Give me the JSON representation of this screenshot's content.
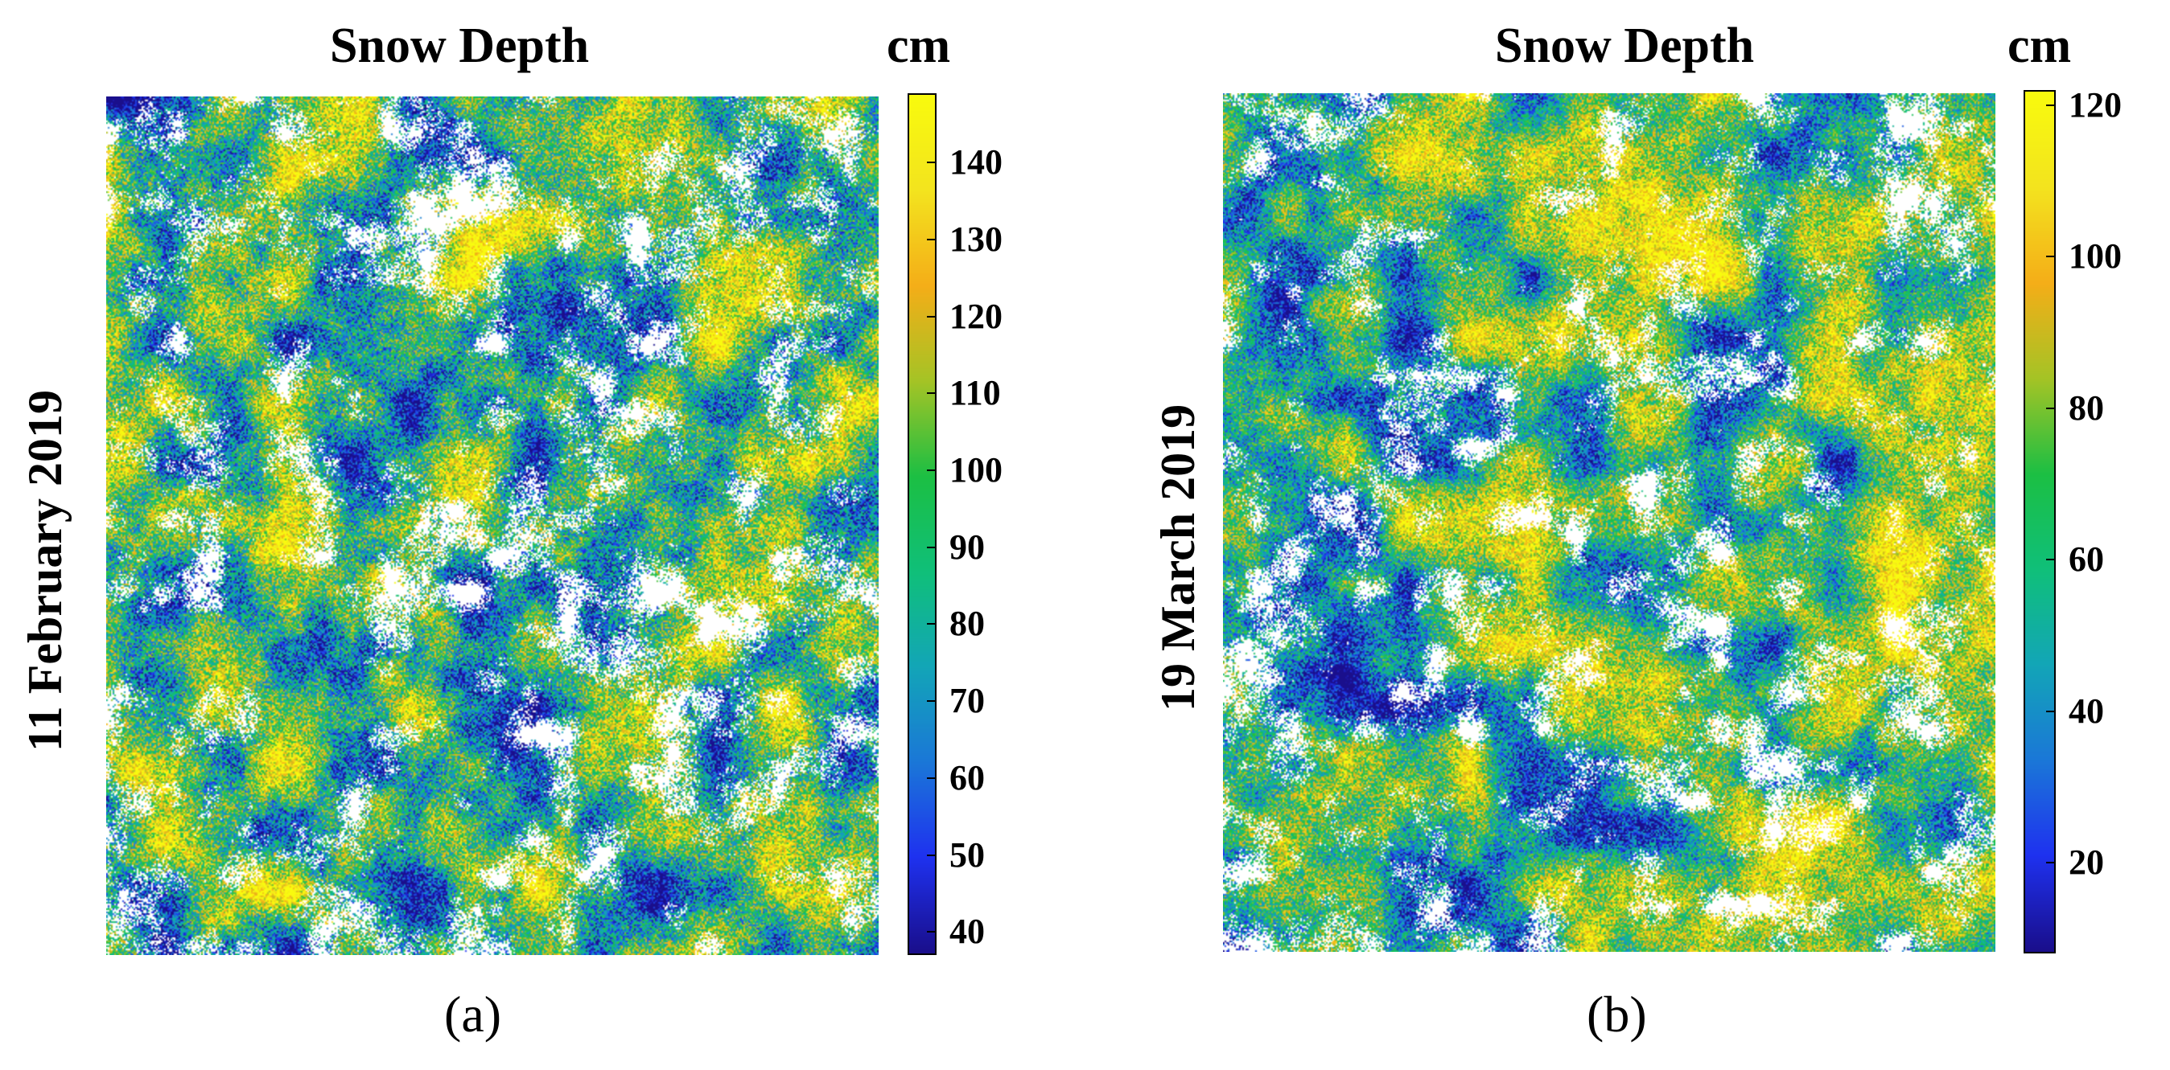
{
  "chart_data": [
    {
      "type": "heatmap",
      "panel_label": "(a)",
      "title": "Snow Depth",
      "ylabel": "11 February 2019",
      "colorbar": {
        "unit": "cm",
        "range": [
          37,
          149
        ],
        "ticks": [
          40,
          50,
          60,
          70,
          80,
          90,
          100,
          110,
          120,
          130,
          140
        ],
        "tick_labels": [
          "40",
          "50",
          "60",
          "70",
          "80",
          "90",
          "100",
          "110",
          "120",
          "130",
          "140"
        ],
        "colormap": "parula"
      },
      "no_data_color": "#ffffff"
    },
    {
      "type": "heatmap",
      "panel_label": "(b)",
      "title": "Snow Depth",
      "ylabel": "19 March 2019",
      "colorbar": {
        "unit": "cm",
        "range": [
          8,
          122
        ],
        "ticks": [
          20,
          40,
          60,
          80,
          100,
          120
        ],
        "tick_labels": [
          "20",
          "40",
          "60",
          "80",
          "100",
          "120"
        ],
        "colormap": "parula"
      },
      "no_data_color": "#ffffff"
    }
  ],
  "colormap_stops": [
    "#1a0f8c",
    "#1f32f0",
    "#1b78d8",
    "#13a6b8",
    "#10c07a",
    "#1cbf44",
    "#a5c426",
    "#f5ae18",
    "#f3e41f",
    "#f9fb0e"
  ]
}
